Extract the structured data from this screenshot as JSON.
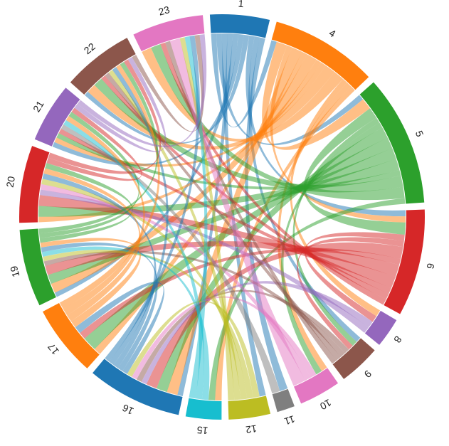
{
  "chart_data": {
    "type": "chord",
    "groups": [
      {
        "label": "1",
        "color": "#1f77b4",
        "size": 10
      },
      {
        "label": "4",
        "color": "#ff7f0e",
        "size": 18
      },
      {
        "label": "5",
        "color": "#2ca02c",
        "size": 22
      },
      {
        "label": "6",
        "color": "#d62728",
        "size": 18
      },
      {
        "label": "8",
        "color": "#9467bd",
        "size": 5
      },
      {
        "label": "9",
        "color": "#8c564b",
        "size": 7
      },
      {
        "label": "10",
        "color": "#e377c2",
        "size": 7
      },
      {
        "label": "11",
        "color": "#7f7f7f",
        "size": 3
      },
      {
        "label": "12",
        "color": "#bcbd22",
        "size": 7
      },
      {
        "label": "15",
        "color": "#17becf",
        "size": 6
      },
      {
        "label": "16",
        "color": "#1f77b4",
        "size": 16
      },
      {
        "label": "17",
        "color": "#ff7f0e",
        "size": 12
      },
      {
        "label": "19",
        "color": "#2ca02c",
        "size": 13
      },
      {
        "label": "20",
        "color": "#d62728",
        "size": 13
      },
      {
        "label": "21",
        "color": "#9467bd",
        "size": 10
      },
      {
        "label": "22",
        "color": "#8c564b",
        "size": 12
      },
      {
        "label": "23",
        "color": "#e377c2",
        "size": 12
      }
    ],
    "links": [
      [
        "1",
        "4",
        1
      ],
      [
        "1",
        "5",
        1
      ],
      [
        "1",
        "12",
        1
      ],
      [
        "1",
        "16",
        1
      ],
      [
        "1",
        "19",
        1
      ],
      [
        "1",
        "21",
        1
      ],
      [
        "1",
        "22",
        1
      ],
      [
        "1",
        "6",
        1
      ],
      [
        "1",
        "9",
        1
      ],
      [
        "1",
        "11",
        1
      ],
      [
        "4",
        "5",
        2
      ],
      [
        "4",
        "6",
        1
      ],
      [
        "4",
        "16",
        2
      ],
      [
        "4",
        "17",
        1
      ],
      [
        "4",
        "19",
        2
      ],
      [
        "4",
        "20",
        1
      ],
      [
        "4",
        "21",
        1
      ],
      [
        "4",
        "22",
        2
      ],
      [
        "4",
        "23",
        2
      ],
      [
        "4",
        "8",
        1
      ],
      [
        "4",
        "10",
        1
      ],
      [
        "4",
        "15",
        1
      ],
      [
        "5",
        "6",
        2
      ],
      [
        "5",
        "9",
        1
      ],
      [
        "5",
        "10",
        1
      ],
      [
        "5",
        "16",
        2
      ],
      [
        "5",
        "17",
        2
      ],
      [
        "5",
        "19",
        2
      ],
      [
        "5",
        "20",
        2
      ],
      [
        "5",
        "21",
        1
      ],
      [
        "5",
        "22",
        2
      ],
      [
        "5",
        "23",
        2
      ],
      [
        "5",
        "15",
        1
      ],
      [
        "6",
        "8",
        1
      ],
      [
        "6",
        "9",
        1
      ],
      [
        "6",
        "16",
        2
      ],
      [
        "6",
        "17",
        1
      ],
      [
        "6",
        "19",
        2
      ],
      [
        "6",
        "20",
        2
      ],
      [
        "6",
        "21",
        1
      ],
      [
        "6",
        "22",
        1
      ],
      [
        "6",
        "23",
        1
      ],
      [
        "8",
        "16",
        1
      ],
      [
        "8",
        "20",
        1
      ],
      [
        "9",
        "16",
        1
      ],
      [
        "9",
        "19",
        1
      ],
      [
        "9",
        "22",
        1
      ],
      [
        "9",
        "23",
        1
      ],
      [
        "10",
        "16",
        1
      ],
      [
        "10",
        "20",
        1
      ],
      [
        "10",
        "23",
        2
      ],
      [
        "11",
        "21",
        1
      ],
      [
        "12",
        "16",
        1
      ],
      [
        "12",
        "19",
        1
      ],
      [
        "12",
        "20",
        1
      ],
      [
        "12",
        "22",
        1
      ],
      [
        "12",
        "23",
        1
      ],
      [
        "15",
        "19",
        1
      ],
      [
        "15",
        "21",
        1
      ],
      [
        "15",
        "23",
        1
      ],
      [
        "16",
        "17",
        1
      ],
      [
        "16",
        "19",
        1
      ],
      [
        "16",
        "20",
        1
      ],
      [
        "16",
        "22",
        1
      ],
      [
        "16",
        "23",
        1
      ],
      [
        "17",
        "19",
        1
      ],
      [
        "17",
        "20",
        1
      ],
      [
        "17",
        "21",
        1
      ],
      [
        "17",
        "22",
        1
      ],
      [
        "19",
        "20",
        1
      ],
      [
        "19",
        "21",
        1
      ],
      [
        "19",
        "22",
        1
      ],
      [
        "20",
        "21",
        1
      ],
      [
        "20",
        "22",
        1
      ],
      [
        "21",
        "22",
        1
      ],
      [
        "22",
        "23",
        1
      ],
      [
        "21",
        "23",
        1
      ]
    ]
  }
}
